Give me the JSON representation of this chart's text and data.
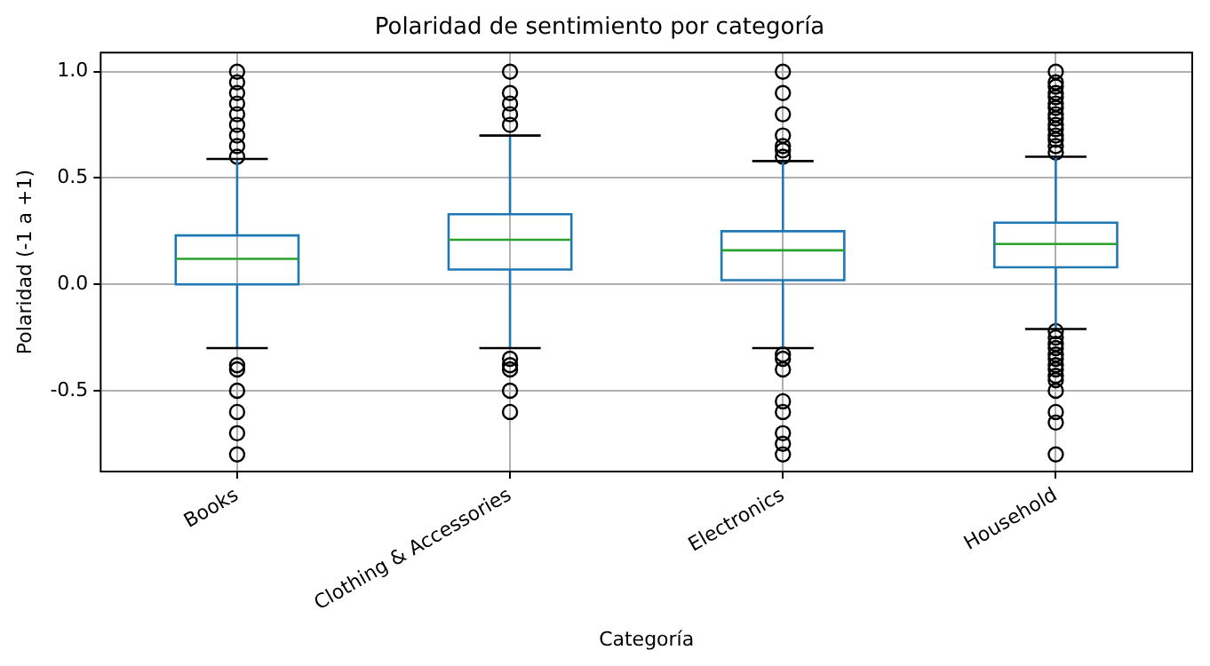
{
  "chart_data": {
    "type": "box",
    "title": "Polaridad de sentimiento por categoría",
    "xlabel": "Categoría",
    "ylabel": "Polaridad (-1 a +1)",
    "categories": [
      "Books",
      "Clothing & Accessories",
      "Electronics",
      "Household"
    ],
    "ylim": [
      -0.88,
      1.09
    ],
    "yticks": [
      -0.5,
      {
        "value": 0,
        "label": "0.0"
      },
      0.5,
      {
        "value": 1,
        "label": "1.0"
      }
    ],
    "grid": true,
    "color": "#1f77b4",
    "boxes": [
      {
        "low": -0.3,
        "q1": 0.0,
        "median": 0.12,
        "q3": 0.23,
        "high": 0.59,
        "outliers": [
          0.6,
          0.65,
          0.7,
          0.75,
          0.8,
          0.85,
          0.9,
          0.95,
          1.0,
          -0.38,
          -0.4,
          -0.5,
          -0.6,
          -0.7,
          -0.8
        ]
      },
      {
        "low": -0.3,
        "q1": 0.07,
        "median": 0.21,
        "q3": 0.33,
        "high": 0.7,
        "outliers": [
          0.75,
          0.8,
          0.85,
          0.9,
          1.0,
          -0.35,
          -0.38,
          -0.4,
          -0.5,
          -0.6
        ]
      },
      {
        "low": -0.3,
        "q1": 0.02,
        "median": 0.16,
        "q3": 0.25,
        "high": 0.58,
        "outliers": [
          0.6,
          0.63,
          0.65,
          0.7,
          0.8,
          0.9,
          1.0,
          -0.33,
          -0.35,
          -0.4,
          -0.55,
          -0.6,
          -0.7,
          -0.75,
          -0.8
        ]
      },
      {
        "low": -0.21,
        "q1": 0.08,
        "median": 0.19,
        "q3": 0.29,
        "high": 0.6,
        "outliers": [
          0.62,
          0.65,
          0.68,
          0.7,
          0.73,
          0.75,
          0.78,
          0.8,
          0.83,
          0.85,
          0.88,
          0.9,
          0.93,
          0.95,
          1.0,
          -0.22,
          -0.25,
          -0.28,
          -0.3,
          -0.33,
          -0.35,
          -0.38,
          -0.4,
          -0.43,
          -0.45,
          -0.5,
          -0.6,
          -0.65,
          -0.8
        ]
      }
    ]
  }
}
